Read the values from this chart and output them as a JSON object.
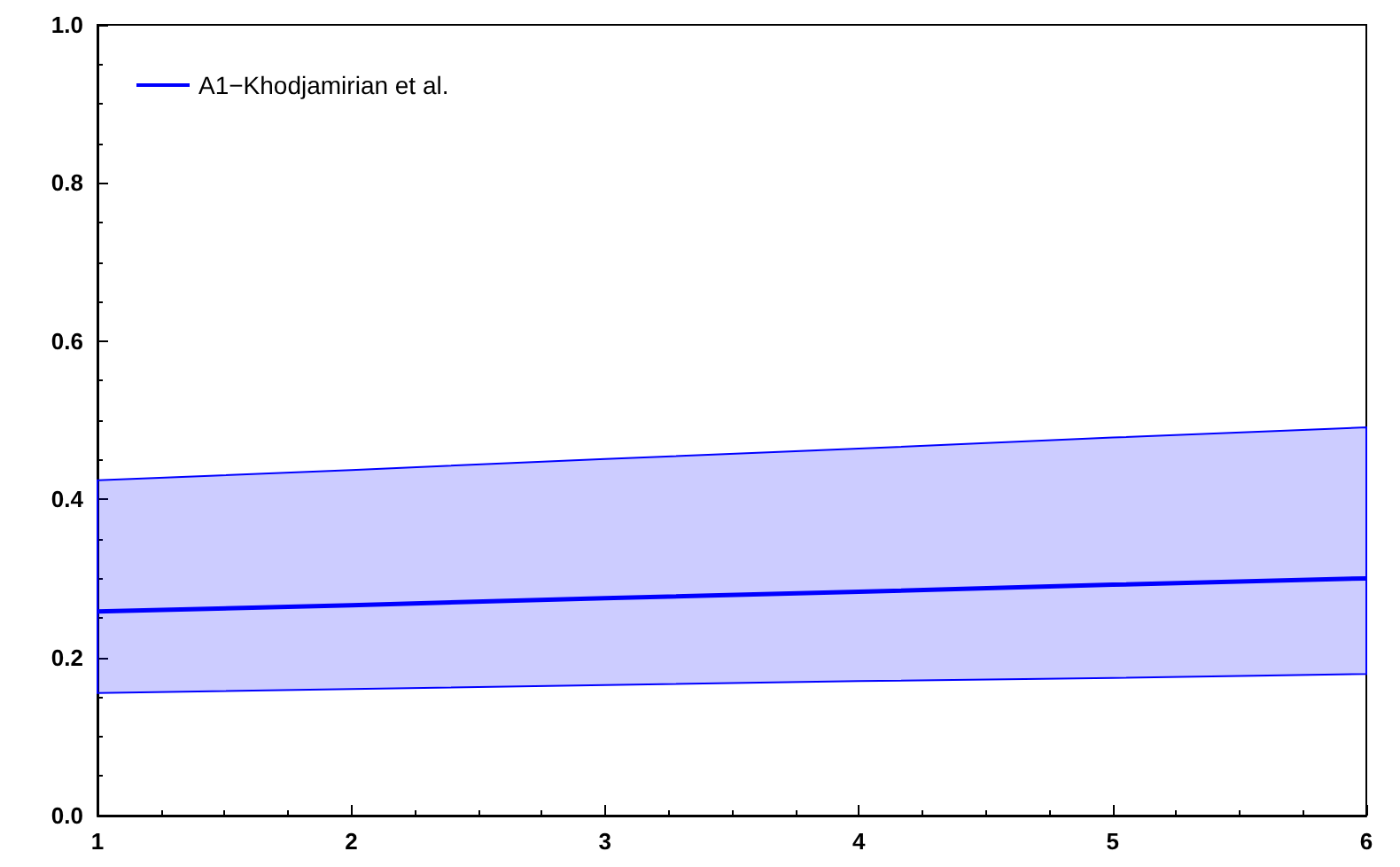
{
  "chart_data": {
    "type": "line",
    "x": [
      1,
      2,
      3,
      4,
      5,
      6
    ],
    "series": [
      {
        "name": "A1−Khodjamirian et al.",
        "color": "#0000ff",
        "values": [
          0.258,
          0.266,
          0.275,
          0.283,
          0.292,
          0.3
        ],
        "lower": [
          0.155,
          0.16,
          0.165,
          0.17,
          0.174,
          0.179
        ],
        "upper": [
          0.424,
          0.437,
          0.451,
          0.464,
          0.478,
          0.491
        ]
      }
    ],
    "xlim": [
      1,
      6
    ],
    "xticks": [
      1,
      2,
      3,
      4,
      5,
      6
    ],
    "ylim": [
      0,
      1
    ],
    "yticks": [
      {
        "value": 0,
        "label": "0.0"
      },
      0.2,
      0.4,
      0.6,
      0.8,
      {
        "value": 1,
        "label": "1.0"
      }
    ],
    "grid": false,
    "legend": "top left",
    "marker": "none",
    "line_style": "solid"
  }
}
